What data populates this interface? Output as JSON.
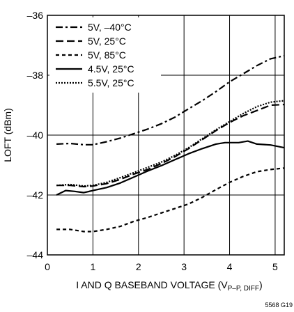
{
  "chart_data": {
    "type": "line",
    "xlabel": "I AND Q BASEBAND VOLTAGE (V",
    "xlabel_sub": "P–P, DIFF",
    "xlabel_close": ")",
    "ylabel": "LOFT (dBm)",
    "xlim": [
      0,
      5.2
    ],
    "ylim": [
      -44,
      -36
    ],
    "xticks": [
      0,
      1,
      2,
      3,
      4,
      5
    ],
    "yticks": [
      -44,
      -42,
      -40,
      -38,
      -36
    ],
    "ytick_labels": [
      "–44",
      "–42",
      "–40",
      "–38",
      "–36"
    ],
    "grid": true,
    "legend_position": "top-left",
    "figure_id": "5568 G19",
    "series": [
      {
        "name": "5V, –40°C",
        "style": "dashdot",
        "x": [
          0.2,
          0.5,
          0.8,
          1.0,
          1.3,
          1.6,
          1.9,
          2.2,
          2.5,
          2.8,
          3.1,
          3.4,
          3.7,
          4.0,
          4.3,
          4.6,
          4.9,
          5.2
        ],
        "y": [
          -40.3,
          -40.28,
          -40.32,
          -40.32,
          -40.22,
          -40.1,
          -39.95,
          -39.8,
          -39.62,
          -39.4,
          -39.12,
          -38.85,
          -38.55,
          -38.22,
          -37.95,
          -37.68,
          -37.45,
          -37.35
        ]
      },
      {
        "name": "5V, 25°C",
        "style": "dash",
        "x": [
          0.2,
          0.5,
          0.8,
          1.0,
          1.3,
          1.6,
          1.9,
          2.2,
          2.5,
          2.8,
          3.1,
          3.4,
          3.7,
          4.0,
          4.3,
          4.6,
          4.9,
          5.2
        ],
        "y": [
          -41.68,
          -41.68,
          -41.72,
          -41.7,
          -41.62,
          -41.48,
          -41.3,
          -41.15,
          -40.95,
          -40.72,
          -40.45,
          -40.15,
          -39.85,
          -39.58,
          -39.35,
          -39.18,
          -39.0,
          -38.98
        ]
      },
      {
        "name": "5V, 85°C",
        "style": "shortdash",
        "x": [
          0.2,
          0.5,
          0.8,
          1.0,
          1.3,
          1.6,
          1.9,
          2.2,
          2.5,
          2.8,
          3.1,
          3.4,
          3.7,
          4.0,
          4.3,
          4.6,
          4.9,
          5.2
        ],
        "y": [
          -43.15,
          -43.15,
          -43.22,
          -43.22,
          -43.15,
          -43.05,
          -42.88,
          -42.75,
          -42.6,
          -42.45,
          -42.3,
          -42.08,
          -41.82,
          -41.58,
          -41.38,
          -41.22,
          -41.15,
          -41.1
        ]
      },
      {
        "name": "4.5V, 25°C",
        "style": "solid",
        "x": [
          0.2,
          0.4,
          0.6,
          0.8,
          1.0,
          1.3,
          1.6,
          1.9,
          2.2,
          2.5,
          2.8,
          3.1,
          3.4,
          3.7,
          3.9,
          4.2,
          4.4,
          4.6,
          4.9,
          5.2
        ],
        "y": [
          -42.0,
          -41.85,
          -41.88,
          -41.92,
          -41.85,
          -41.75,
          -41.6,
          -41.4,
          -41.2,
          -41.02,
          -40.82,
          -40.62,
          -40.45,
          -40.3,
          -40.25,
          -40.25,
          -40.2,
          -40.3,
          -40.33,
          -40.42
        ]
      },
      {
        "name": "5.5V, 25°C",
        "style": "dot",
        "x": [
          0.2,
          0.5,
          0.8,
          1.0,
          1.3,
          1.6,
          1.9,
          2.2,
          2.5,
          2.8,
          3.1,
          3.4,
          3.7,
          4.0,
          4.3,
          4.6,
          4.9,
          5.2
        ],
        "y": [
          -41.68,
          -41.65,
          -41.7,
          -41.68,
          -41.58,
          -41.42,
          -41.25,
          -41.08,
          -40.9,
          -40.68,
          -40.42,
          -40.12,
          -39.82,
          -39.55,
          -39.28,
          -39.05,
          -38.9,
          -38.85
        ]
      }
    ]
  }
}
